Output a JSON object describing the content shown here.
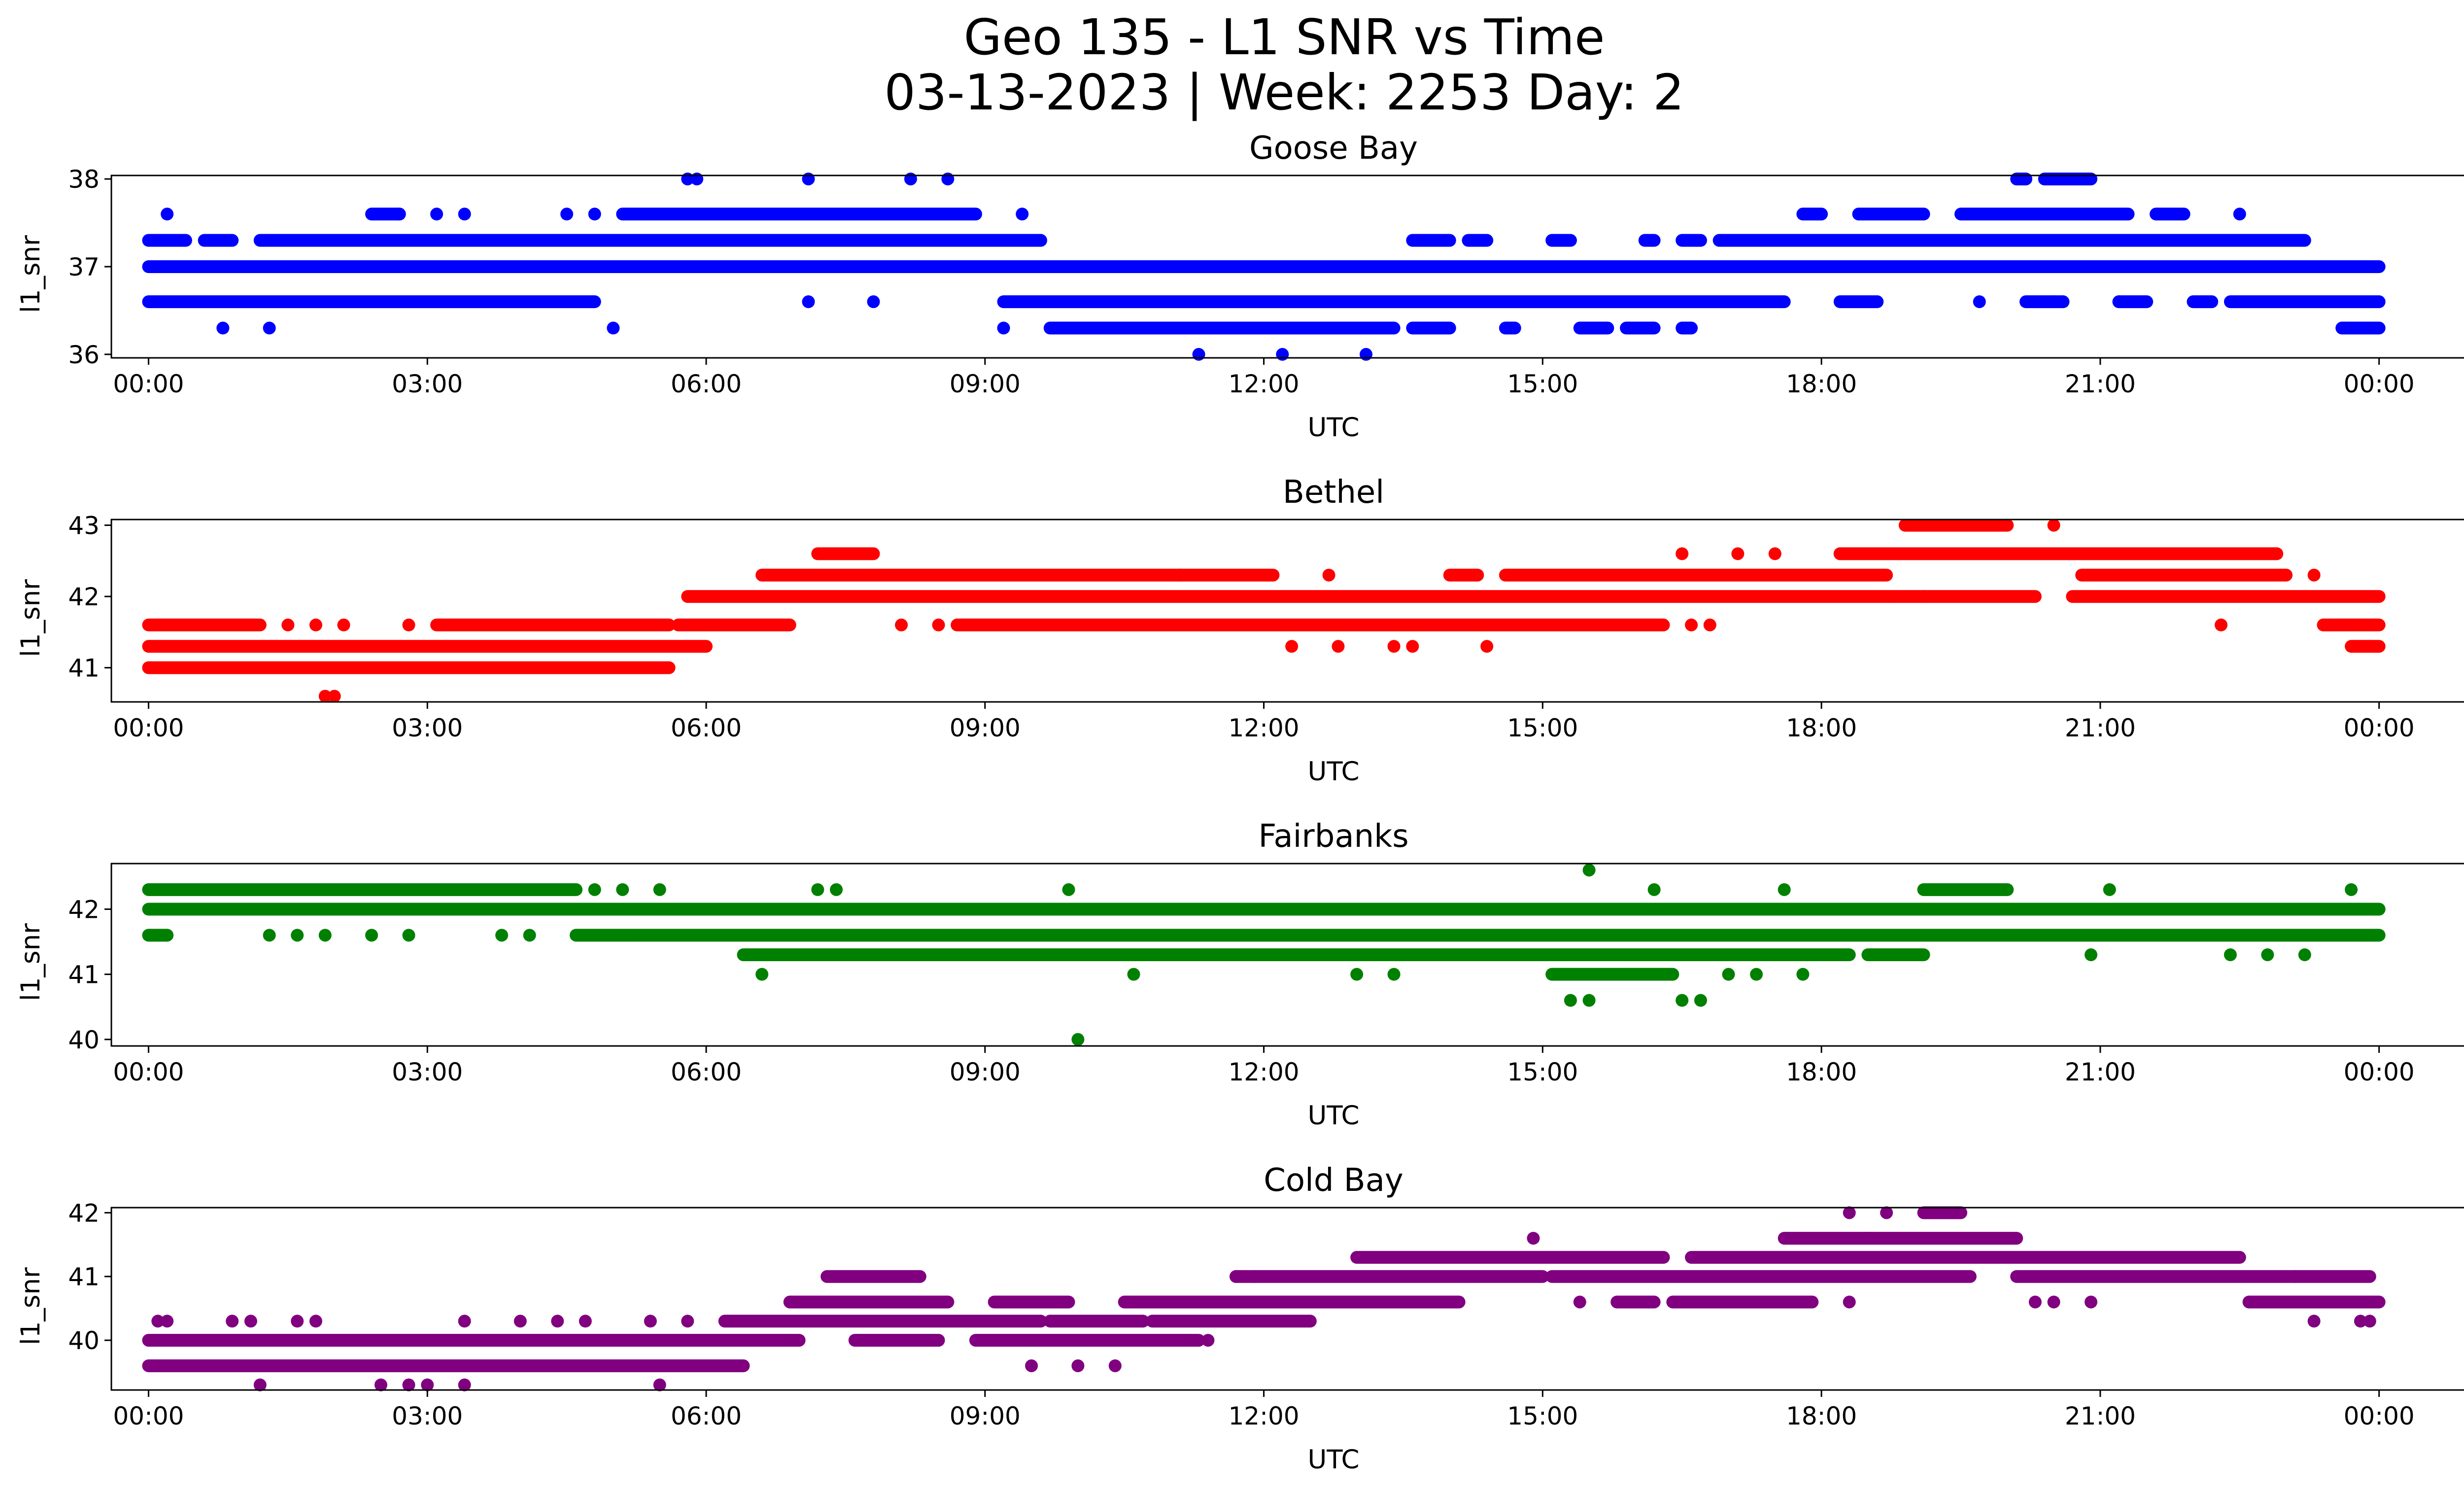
{
  "figure": {
    "title_line1": "Geo 135 - L1 SNR vs Time",
    "title_line2": "03-13-2023 | Week: 2253 Day: 2"
  },
  "chart_data": [
    {
      "type": "scatter",
      "title": "Goose Bay",
      "xlabel": "UTC",
      "ylabel": "l1_snr",
      "color": "#0000ff",
      "xlim_hours": [
        -0.4,
        25.9
      ],
      "ylim": [
        35.96,
        38.04
      ],
      "xticks": [
        "00:00",
        "03:00",
        "06:00",
        "09:00",
        "12:00",
        "15:00",
        "18:00",
        "21:00",
        "00:00"
      ],
      "yticks": [
        36,
        37,
        38
      ],
      "grid": false,
      "bands": [
        {
          "y": 37.0,
          "segments": [
            [
              0.0,
              24.0
            ]
          ]
        },
        {
          "y": 37.3,
          "segments": [
            [
              0.0,
              0.4
            ],
            [
              0.6,
              0.9
            ],
            [
              1.2,
              9.6
            ],
            [
              13.6,
              14.0
            ],
            [
              14.2,
              14.4
            ],
            [
              15.1,
              15.3
            ],
            [
              16.1,
              16.2
            ],
            [
              16.5,
              16.7
            ],
            [
              16.9,
              23.2
            ]
          ]
        },
        {
          "y": 36.6,
          "segments": [
            [
              0.0,
              4.8
            ],
            [
              9.2,
              17.6
            ],
            [
              18.2,
              18.6
            ],
            [
              20.2,
              20.6
            ],
            [
              21.2,
              21.5
            ],
            [
              22.0,
              22.2
            ],
            [
              22.4,
              24.0
            ]
          ]
        },
        {
          "y": 37.6,
          "segments": [
            [
              2.4,
              2.7
            ],
            [
              5.1,
              8.9
            ],
            [
              17.8,
              18.0
            ],
            [
              18.4,
              19.1
            ],
            [
              19.5,
              21.3
            ],
            [
              21.6,
              21.9
            ]
          ]
        },
        {
          "y": 36.3,
          "segments": [
            [
              9.7,
              13.4
            ],
            [
              13.6,
              14.0
            ],
            [
              14.6,
              14.7
            ],
            [
              15.4,
              15.7
            ],
            [
              15.9,
              16.2
            ],
            [
              16.5,
              16.6
            ],
            [
              23.6,
              24.0
            ]
          ]
        },
        {
          "y": 38.0,
          "segments": [
            [
              20.1,
              20.2
            ],
            [
              20.4,
              20.9
            ]
          ]
        }
      ],
      "points": [
        {
          "x": 0.2,
          "y": 37.6
        },
        {
          "x": 2.7,
          "y": 37.6
        },
        {
          "x": 3.1,
          "y": 37.6
        },
        {
          "x": 3.4,
          "y": 37.6
        },
        {
          "x": 4.5,
          "y": 37.6
        },
        {
          "x": 4.8,
          "y": 37.6
        },
        {
          "x": 0.8,
          "y": 36.3
        },
        {
          "x": 1.3,
          "y": 36.3
        },
        {
          "x": 5.0,
          "y": 36.3
        },
        {
          "x": 5.8,
          "y": 38.0
        },
        {
          "x": 5.9,
          "y": 38.0
        },
        {
          "x": 7.1,
          "y": 38.0
        },
        {
          "x": 8.2,
          "y": 38.0
        },
        {
          "x": 8.6,
          "y": 38.0
        },
        {
          "x": 9.4,
          "y": 37.6
        },
        {
          "x": 7.1,
          "y": 36.6
        },
        {
          "x": 7.8,
          "y": 36.6
        },
        {
          "x": 9.2,
          "y": 36.3
        },
        {
          "x": 11.3,
          "y": 36.0
        },
        {
          "x": 12.2,
          "y": 36.0
        },
        {
          "x": 13.1,
          "y": 36.0
        },
        {
          "x": 22.5,
          "y": 37.6
        },
        {
          "x": 19.7,
          "y": 36.6
        },
        {
          "x": 20.5,
          "y": 36.6
        },
        {
          "x": 21.2,
          "y": 36.6
        }
      ]
    },
    {
      "type": "scatter",
      "title": "Bethel",
      "xlabel": "UTC",
      "ylabel": "l1_snr",
      "color": "#ff0000",
      "xlim_hours": [
        -0.4,
        25.9
      ],
      "ylim": [
        40.52,
        43.08
      ],
      "xticks": [
        "00:00",
        "03:00",
        "06:00",
        "09:00",
        "12:00",
        "15:00",
        "18:00",
        "21:00",
        "00:00"
      ],
      "yticks": [
        41,
        42,
        43
      ],
      "grid": false,
      "bands": [
        {
          "y": 41.3,
          "segments": [
            [
              0.0,
              6.0
            ],
            [
              23.7,
              24.0
            ]
          ]
        },
        {
          "y": 41.6,
          "segments": [
            [
              0.0,
              1.2
            ],
            [
              3.1,
              5.6
            ],
            [
              5.7,
              6.9
            ],
            [
              8.7,
              16.3
            ],
            [
              23.4,
              24.0
            ]
          ]
        },
        {
          "y": 41.0,
          "segments": [
            [
              0.0,
              5.6
            ]
          ]
        },
        {
          "y": 42.0,
          "segments": [
            [
              5.8,
              20.3
            ],
            [
              20.7,
              24.0
            ]
          ]
        },
        {
          "y": 42.3,
          "segments": [
            [
              6.6,
              11.1
            ],
            [
              11.1,
              12.1
            ],
            [
              14.0,
              14.3
            ],
            [
              14.6,
              18.7
            ],
            [
              20.8,
              23.0
            ]
          ]
        },
        {
          "y": 42.6,
          "segments": [
            [
              7.2,
              7.8
            ],
            [
              18.2,
              22.9
            ]
          ]
        },
        {
          "y": 43.0,
          "segments": [
            [
              18.9,
              20.0
            ]
          ]
        }
      ],
      "points": [
        {
          "x": 1.5,
          "y": 41.6
        },
        {
          "x": 1.8,
          "y": 41.6
        },
        {
          "x": 2.1,
          "y": 41.6
        },
        {
          "x": 2.8,
          "y": 41.6
        },
        {
          "x": 1.9,
          "y": 40.6
        },
        {
          "x": 2.0,
          "y": 40.6
        },
        {
          "x": 8.1,
          "y": 41.6
        },
        {
          "x": 8.5,
          "y": 41.6
        },
        {
          "x": 12.3,
          "y": 41.3
        },
        {
          "x": 12.8,
          "y": 41.3
        },
        {
          "x": 13.4,
          "y": 41.3
        },
        {
          "x": 13.6,
          "y": 41.3
        },
        {
          "x": 14.4,
          "y": 41.3
        },
        {
          "x": 12.7,
          "y": 42.3
        },
        {
          "x": 16.6,
          "y": 41.6
        },
        {
          "x": 16.8,
          "y": 41.6
        },
        {
          "x": 16.5,
          "y": 42.6
        },
        {
          "x": 17.1,
          "y": 42.6
        },
        {
          "x": 17.5,
          "y": 42.6
        },
        {
          "x": 18.2,
          "y": 42.6
        },
        {
          "x": 18.8,
          "y": 42.0
        },
        {
          "x": 19.1,
          "y": 42.0
        },
        {
          "x": 20.5,
          "y": 43.0
        },
        {
          "x": 22.3,
          "y": 41.6
        },
        {
          "x": 23.3,
          "y": 42.3
        }
      ]
    },
    {
      "type": "scatter",
      "title": "Fairbanks",
      "xlabel": "UTC",
      "ylabel": "l1_snr",
      "color": "#008000",
      "xlim_hours": [
        -0.4,
        25.9
      ],
      "ylim": [
        39.9,
        42.7
      ],
      "xticks": [
        "00:00",
        "03:00",
        "06:00",
        "09:00",
        "12:00",
        "15:00",
        "18:00",
        "21:00",
        "00:00"
      ],
      "yticks": [
        40,
        41,
        42
      ],
      "grid": false,
      "bands": [
        {
          "y": 42.0,
          "segments": [
            [
              0.0,
              24.0
            ]
          ]
        },
        {
          "y": 42.3,
          "segments": [
            [
              0.0,
              4.6
            ],
            [
              19.1,
              20.0
            ]
          ]
        },
        {
          "y": 41.6,
          "segments": [
            [
              0.0,
              0.2
            ],
            [
              4.6,
              24.0
            ]
          ]
        },
        {
          "y": 41.3,
          "segments": [
            [
              6.4,
              18.3
            ],
            [
              18.5,
              19.1
            ]
          ]
        },
        {
          "y": 41.0,
          "segments": [
            [
              15.1,
              16.4
            ]
          ]
        }
      ],
      "points": [
        {
          "x": 1.3,
          "y": 41.6
        },
        {
          "x": 1.6,
          "y": 41.6
        },
        {
          "x": 1.9,
          "y": 41.6
        },
        {
          "x": 2.4,
          "y": 41.6
        },
        {
          "x": 2.8,
          "y": 41.6
        },
        {
          "x": 3.8,
          "y": 41.6
        },
        {
          "x": 4.1,
          "y": 41.6
        },
        {
          "x": 4.8,
          "y": 42.3
        },
        {
          "x": 5.1,
          "y": 42.3
        },
        {
          "x": 5.5,
          "y": 42.3
        },
        {
          "x": 7.2,
          "y": 42.3
        },
        {
          "x": 7.4,
          "y": 42.3
        },
        {
          "x": 6.6,
          "y": 41.0
        },
        {
          "x": 10.6,
          "y": 41.0
        },
        {
          "x": 13.0,
          "y": 41.0
        },
        {
          "x": 13.4,
          "y": 41.0
        },
        {
          "x": 10.0,
          "y": 40.0
        },
        {
          "x": 9.9,
          "y": 42.3
        },
        {
          "x": 15.5,
          "y": 42.6
        },
        {
          "x": 16.2,
          "y": 42.3
        },
        {
          "x": 15.3,
          "y": 40.6
        },
        {
          "x": 15.5,
          "y": 40.6
        },
        {
          "x": 16.5,
          "y": 40.6
        },
        {
          "x": 16.7,
          "y": 40.6
        },
        {
          "x": 17.0,
          "y": 41.0
        },
        {
          "x": 17.3,
          "y": 41.0
        },
        {
          "x": 17.8,
          "y": 41.0
        },
        {
          "x": 17.6,
          "y": 42.3
        },
        {
          "x": 21.1,
          "y": 42.3
        },
        {
          "x": 20.9,
          "y": 41.3
        },
        {
          "x": 22.4,
          "y": 41.3
        },
        {
          "x": 22.8,
          "y": 41.3
        },
        {
          "x": 23.2,
          "y": 41.3
        },
        {
          "x": 23.7,
          "y": 42.3
        }
      ]
    },
    {
      "type": "scatter",
      "title": "Cold Bay",
      "xlabel": "UTC",
      "ylabel": "l1_snr",
      "color": "#800080",
      "xlim_hours": [
        -0.4,
        25.9
      ],
      "ylim": [
        39.22,
        42.08
      ],
      "xticks": [
        "00:00",
        "03:00",
        "06:00",
        "09:00",
        "12:00",
        "15:00",
        "18:00",
        "21:00",
        "00:00"
      ],
      "yticks": [
        40,
        41,
        42
      ],
      "grid": false,
      "bands": [
        {
          "y": 39.6,
          "segments": [
            [
              0.0,
              6.4
            ]
          ]
        },
        {
          "y": 40.0,
          "segments": [
            [
              0.0,
              7.0
            ],
            [
              7.6,
              8.5
            ],
            [
              8.9,
              11.3
            ]
          ]
        },
        {
          "y": 40.3,
          "segments": [
            [
              6.2,
              9.6
            ],
            [
              9.7,
              10.7
            ],
            [
              10.8,
              12.5
            ]
          ]
        },
        {
          "y": 40.6,
          "segments": [
            [
              6.9,
              8.6
            ],
            [
              9.1,
              9.9
            ],
            [
              10.5,
              14.1
            ],
            [
              15.8,
              16.2
            ],
            [
              16.4,
              17.9
            ],
            [
              22.6,
              24.0
            ]
          ]
        },
        {
          "y": 41.0,
          "segments": [
            [
              7.3,
              8.3
            ],
            [
              11.7,
              15.0
            ],
            [
              15.1,
              19.6
            ],
            [
              20.1,
              23.9
            ]
          ]
        },
        {
          "y": 41.3,
          "segments": [
            [
              13.0,
              16.3
            ],
            [
              16.6,
              22.5
            ]
          ]
        },
        {
          "y": 41.6,
          "segments": [
            [
              17.6,
              20.1
            ]
          ]
        },
        {
          "y": 42.0,
          "segments": [
            [
              19.1,
              19.5
            ]
          ]
        }
      ],
      "points": [
        {
          "x": 0.1,
          "y": 40.3
        },
        {
          "x": 0.2,
          "y": 40.3
        },
        {
          "x": 0.9,
          "y": 40.3
        },
        {
          "x": 1.1,
          "y": 40.3
        },
        {
          "x": 1.6,
          "y": 40.3
        },
        {
          "x": 1.8,
          "y": 40.3
        },
        {
          "x": 3.4,
          "y": 40.3
        },
        {
          "x": 4.0,
          "y": 40.3
        },
        {
          "x": 4.4,
          "y": 40.3
        },
        {
          "x": 4.7,
          "y": 40.3
        },
        {
          "x": 5.4,
          "y": 40.3
        },
        {
          "x": 5.8,
          "y": 40.3
        },
        {
          "x": 1.2,
          "y": 39.3
        },
        {
          "x": 2.5,
          "y": 39.3
        },
        {
          "x": 2.8,
          "y": 39.3
        },
        {
          "x": 3.0,
          "y": 39.3
        },
        {
          "x": 3.4,
          "y": 39.3
        },
        {
          "x": 5.5,
          "y": 39.3
        },
        {
          "x": 9.5,
          "y": 39.6
        },
        {
          "x": 10.0,
          "y": 39.6
        },
        {
          "x": 10.4,
          "y": 39.6
        },
        {
          "x": 11.4,
          "y": 40.0
        },
        {
          "x": 11.7,
          "y": 41.0
        },
        {
          "x": 11.9,
          "y": 41.0
        },
        {
          "x": 14.9,
          "y": 41.6
        },
        {
          "x": 15.4,
          "y": 40.6
        },
        {
          "x": 18.3,
          "y": 42.0
        },
        {
          "x": 18.7,
          "y": 42.0
        },
        {
          "x": 18.3,
          "y": 40.6
        },
        {
          "x": 18.5,
          "y": 41.6
        },
        {
          "x": 20.3,
          "y": 40.6
        },
        {
          "x": 20.5,
          "y": 40.6
        },
        {
          "x": 20.9,
          "y": 40.6
        },
        {
          "x": 23.1,
          "y": 41.0
        },
        {
          "x": 23.3,
          "y": 40.3
        },
        {
          "x": 23.8,
          "y": 40.3
        },
        {
          "x": 23.9,
          "y": 40.3
        }
      ]
    }
  ]
}
